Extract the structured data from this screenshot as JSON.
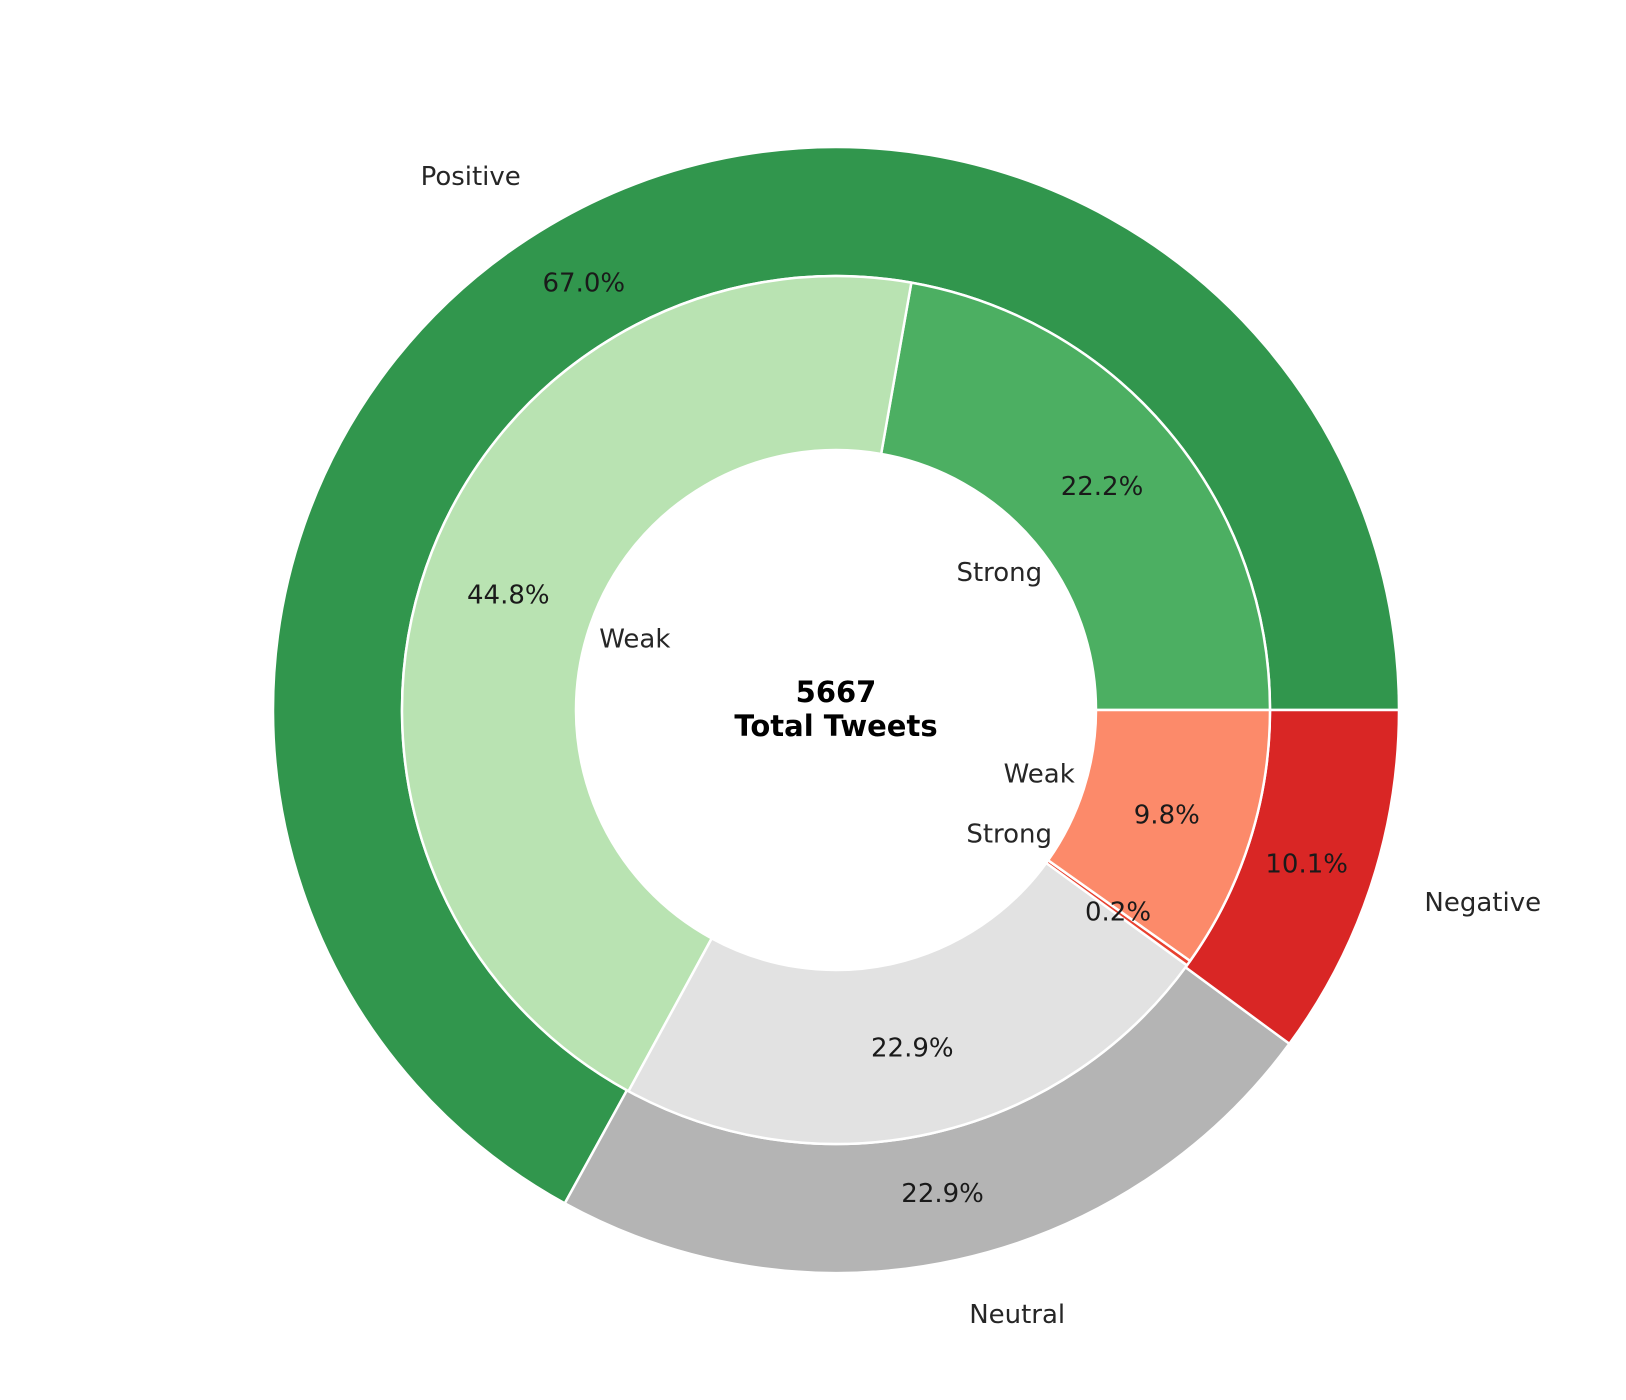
{
  "chart_data": {
    "type": "pie",
    "center_label": {
      "line1": "5667",
      "line2": "Total Tweets"
    },
    "outer_ring": [
      {
        "label": "Positive",
        "value": 67.0,
        "value_label": "67.0%",
        "color": "#31964d"
      },
      {
        "label": "Neutral",
        "value": 22.9,
        "value_label": "22.9%",
        "color": "#b4b4b4"
      },
      {
        "label": "Negative",
        "value": 10.1,
        "value_label": "10.1%",
        "color": "#d92625"
      }
    ],
    "inner_ring": [
      {
        "label": "Strong",
        "parent": "Positive",
        "value": 22.2,
        "value_label": "22.2%",
        "color": "#4caf62"
      },
      {
        "label": "Weak",
        "parent": "Positive",
        "value": 44.8,
        "value_label": "44.8%",
        "color": "#b9e3b2"
      },
      {
        "label": "",
        "parent": "Neutral",
        "value": 22.9,
        "value_label": "22.9%",
        "color": "#e2e2e2"
      },
      {
        "label": "Strong",
        "parent": "Negative",
        "value": 0.2,
        "value_label": "0.2%",
        "color": "#e8412f"
      },
      {
        "label": "Weak",
        "parent": "Negative",
        "value": 9.8,
        "value_label": "9.8%",
        "color": "#fc8a6a"
      }
    ],
    "start_angle_deg": 0,
    "direction": "counterclockwise",
    "wedge_edge_color": "#ffffff"
  }
}
